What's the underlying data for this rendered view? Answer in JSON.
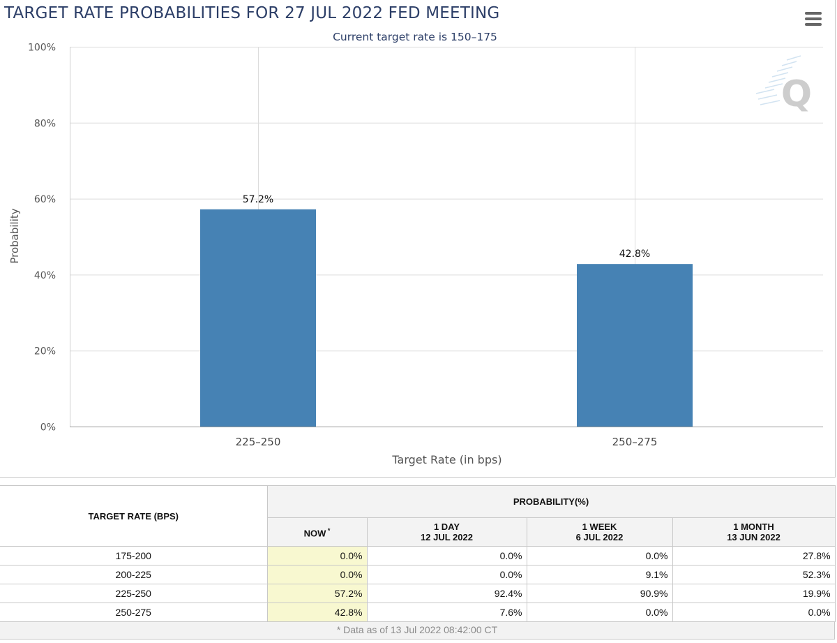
{
  "title": "TARGET RATE PROBABILITIES FOR 27 JUL 2022 FED MEETING",
  "subtitle": "Current target rate is 150–175",
  "watermark": "Q",
  "colors": {
    "bar": "#4682b4",
    "title": "#2c3e67",
    "now_highlight": "#f8f8d0"
  },
  "chart_data": {
    "type": "bar",
    "categories": [
      "225–250",
      "250–275"
    ],
    "values": [
      57.2,
      42.8
    ],
    "data_labels": [
      "57.2%",
      "42.8%"
    ],
    "title": "TARGET RATE PROBABILITIES FOR 27 JUL 2022 FED MEETING",
    "subtitle": "Current target rate is 150–175",
    "xlabel": "Target Rate (in bps)",
    "ylabel": "Probability",
    "ylim": [
      0,
      100
    ],
    "yticks": [
      0,
      20,
      40,
      60,
      80,
      100
    ],
    "ytick_labels": [
      "0%",
      "20%",
      "40%",
      "60%",
      "80%",
      "100%"
    ],
    "grid": true
  },
  "table": {
    "row_header": "TARGET RATE (BPS)",
    "group_header": "PROBABILITY(%)",
    "columns": [
      {
        "label": "NOW",
        "date": "",
        "marker": "*"
      },
      {
        "label": "1 DAY",
        "date": "12 JUL 2022",
        "marker": ""
      },
      {
        "label": "1 WEEK",
        "date": "6 JUL 2022",
        "marker": ""
      },
      {
        "label": "1 MONTH",
        "date": "13 JUN 2022",
        "marker": ""
      }
    ],
    "rows": [
      {
        "rate": "175-200",
        "values": [
          "0.0%",
          "0.0%",
          "0.0%",
          "27.8%"
        ]
      },
      {
        "rate": "200-225",
        "values": [
          "0.0%",
          "0.0%",
          "9.1%",
          "52.3%"
        ]
      },
      {
        "rate": "225-250",
        "values": [
          "57.2%",
          "92.4%",
          "90.9%",
          "19.9%"
        ]
      },
      {
        "rate": "250-275",
        "values": [
          "42.8%",
          "7.6%",
          "0.0%",
          "0.0%"
        ]
      }
    ],
    "footnote": "* Data as of 13 Jul 2022 08:42:00 CT"
  }
}
